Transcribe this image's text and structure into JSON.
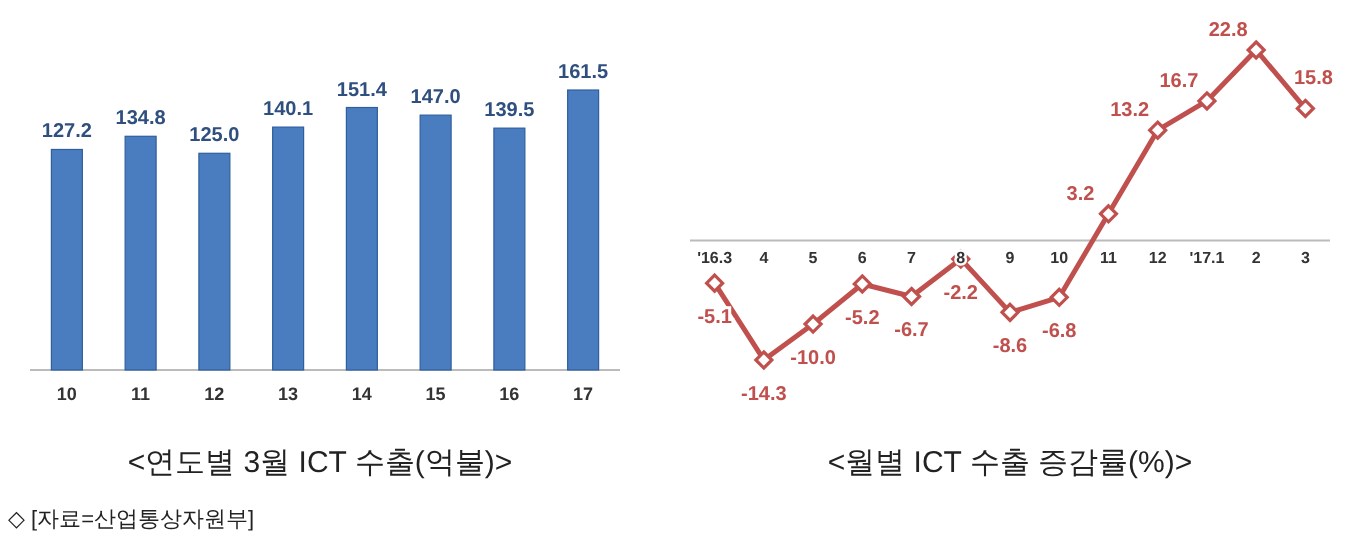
{
  "chart_data": [
    {
      "type": "bar",
      "title": "<연도별 3월 ICT 수출(억불)>",
      "categories": [
        "10",
        "11",
        "12",
        "13",
        "14",
        "15",
        "16",
        "17"
      ],
      "values": [
        127.2,
        134.8,
        125.0,
        140.1,
        151.4,
        147.0,
        139.5,
        161.5
      ],
      "color": "#4a7cc0",
      "value_labels": [
        "127.2",
        "134.8",
        "125.0",
        "140.1",
        "151.4",
        "147.0",
        "139.5",
        "161.5"
      ],
      "annotations": [
        "◇ [자료=산업통상자원부]"
      ]
    },
    {
      "type": "line",
      "title": "<월별 ICT 수출 증감률(%)>",
      "categories": [
        "'16.3",
        "4",
        "5",
        "6",
        "7",
        "8",
        "9",
        "10",
        "11",
        "12",
        "'17.1",
        "2",
        "3"
      ],
      "values": [
        -5.1,
        -14.3,
        -10.0,
        -5.2,
        -6.7,
        -2.2,
        -8.6,
        -6.8,
        3.2,
        13.2,
        16.7,
        22.8,
        15.8
      ],
      "color": "#c0504d",
      "value_labels": [
        "-5.1",
        "-14.3",
        "-10.0",
        "-5.2",
        "-6.7",
        "-2.2",
        "-8.6",
        "-6.8",
        "3.2",
        "13.2",
        "16.7",
        "22.8",
        "15.8"
      ],
      "marker": "diamond"
    }
  ]
}
